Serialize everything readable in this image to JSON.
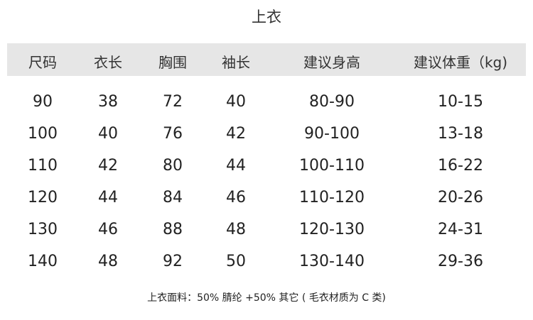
{
  "title": "上衣",
  "headers": [
    "尺码",
    "衣长",
    "胸围",
    "袖长",
    "建议身高",
    "建议体重（kg)"
  ],
  "rows": [
    [
      "90",
      "38",
      "72",
      "40",
      "80-90",
      "10-15"
    ],
    [
      "100",
      "40",
      "76",
      "42",
      "90-100",
      "13-18"
    ],
    [
      "110",
      "42",
      "80",
      "44",
      "100-110",
      "16-22"
    ],
    [
      "120",
      "44",
      "84",
      "46",
      "110-120",
      "20-26"
    ],
    [
      "130",
      "46",
      "88",
      "48",
      "120-130",
      "24-31"
    ],
    [
      "140",
      "48",
      "92",
      "50",
      "130-140",
      "29-36"
    ]
  ],
  "footer": "上衣面料：50% 腈纶 +50% 其它 ( 毛衣材质为 C 类)",
  "colors": {
    "header_band": "#e6e6e6"
  }
}
